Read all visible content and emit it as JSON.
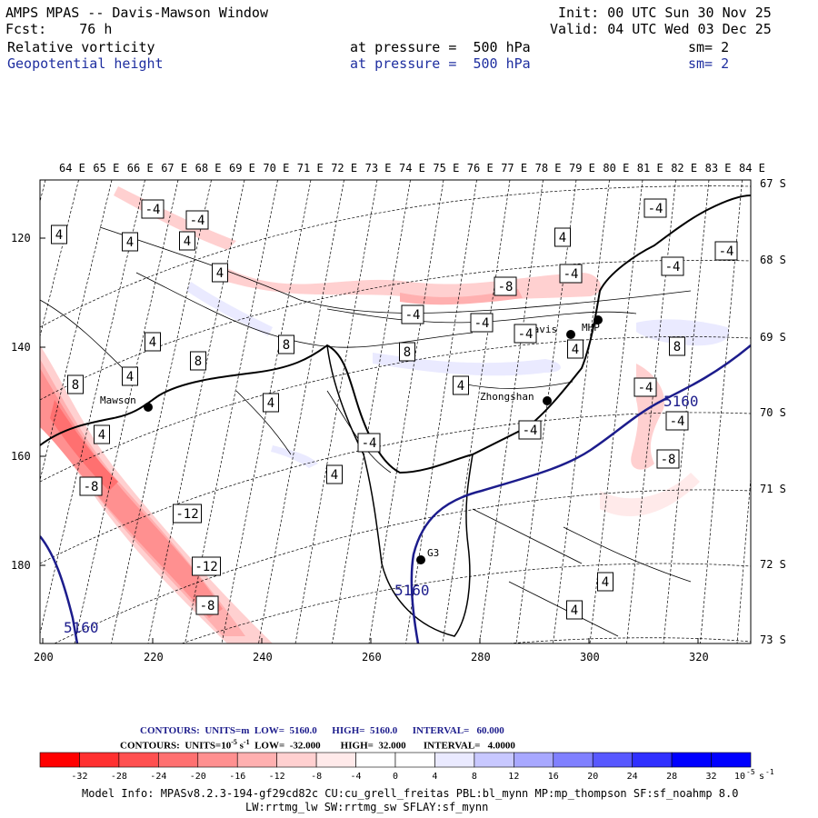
{
  "header": {
    "title": "AMPS MPAS -- Davis-Mawson Window",
    "fcst_label": "Fcst:",
    "fcst_value": "76 h",
    "init": "Init: 00 UTC Sun 30 Nov 25",
    "valid": "Valid: 04 UTC Wed 03 Dec 25",
    "field1_name": "Relative vorticity",
    "field1_level": "at pressure =  500 hPa",
    "field1_sm": "sm= 2",
    "field2_name": "Geopotential height",
    "field2_level": "at pressure =  500 hPa",
    "field2_sm": "sm= 2"
  },
  "map": {
    "lon_labels": [
      "64 E",
      "65 E",
      "66 E",
      "67 E",
      "68 E",
      "69 E",
      "70 E",
      "71 E",
      "72 E",
      "73 E",
      "74 E",
      "75 E",
      "76 E",
      "77 E",
      "78 E",
      "79 E",
      "80 E",
      "81 E",
      "82 E",
      "83 E",
      "84 E"
    ],
    "lat_labels": [
      "67 S",
      "68 S",
      "69 S",
      "70 S",
      "71 S",
      "72 S",
      "73 S"
    ],
    "y_ticks": [
      "120",
      "140",
      "160",
      "180"
    ],
    "x_ticks": [
      "200",
      "220",
      "240",
      "260",
      "280",
      "300",
      "320"
    ],
    "stations": [
      "Mawson",
      "Davis",
      "MHP",
      "Zhongshan",
      "G3"
    ],
    "height_contour_label": "5160",
    "vorticity_labels": [
      "-4",
      "-4",
      "4",
      "4",
      "4",
      "4",
      "8",
      "4",
      "8",
      "4",
      "-8",
      "-12",
      "-4",
      "-4",
      "-12",
      "-8",
      "8",
      "4",
      "4",
      "4",
      "-4",
      "-8",
      "-4",
      "8",
      "-4",
      "4",
      "4",
      "4",
      "-4",
      "-4",
      "-4",
      "-4",
      "8",
      "-4",
      "-4",
      "-8",
      "4",
      "4",
      "4"
    ]
  },
  "legend": {
    "line1_contours": "CONTOURS:",
    "line1_units": "UNITS=m",
    "line1_low": "LOW=  5160.0",
    "line1_high": "HIGH=  5160.0",
    "line1_interval": "INTERVAL=   60.000",
    "line2_contours": "CONTOURS:",
    "line2_units": "UNITS=10",
    "line2_exp": "-5",
    "line2_units_tail": "s",
    "line2_exp2": "-1",
    "line2_low": "LOW=  -32.000",
    "line2_high": "HIGH=  32.000",
    "line2_interval": "INTERVAL=   4.0000",
    "colorbar_ticks": [
      "-32",
      "-28",
      "-24",
      "-20",
      "-16",
      "-12",
      "-8",
      "-4",
      "0",
      "4",
      "8",
      "12",
      "16",
      "20",
      "24",
      "28",
      "32"
    ],
    "colorbar_unit": "10",
    "colorbar_unit_exp": "-5",
    "colorbar_unit_s": "s",
    "colorbar_unit_exp2": "-1",
    "colors": [
      "#ff0000",
      "#ff3030",
      "#ff5050",
      "#ff7070",
      "#ff9090",
      "#ffb0b0",
      "#ffd0d0",
      "#ffeaea",
      "#ffffff",
      "#ffffff",
      "#eaeaff",
      "#c8c8ff",
      "#a8a8ff",
      "#8080ff",
      "#5858ff",
      "#3030ff",
      "#0000ff",
      "#0000ff"
    ]
  },
  "footer": {
    "line1": "Model Info: MPASv8.2.3-194-gf29cd82c CU:cu_grell_freitas PBL:bl_mynn MP:mp_thompson SF:sf_noahmp 8.0",
    "line2": "LW:rrtmg_lw SW:rrtmg_sw SFLAY:sf_mynn"
  }
}
